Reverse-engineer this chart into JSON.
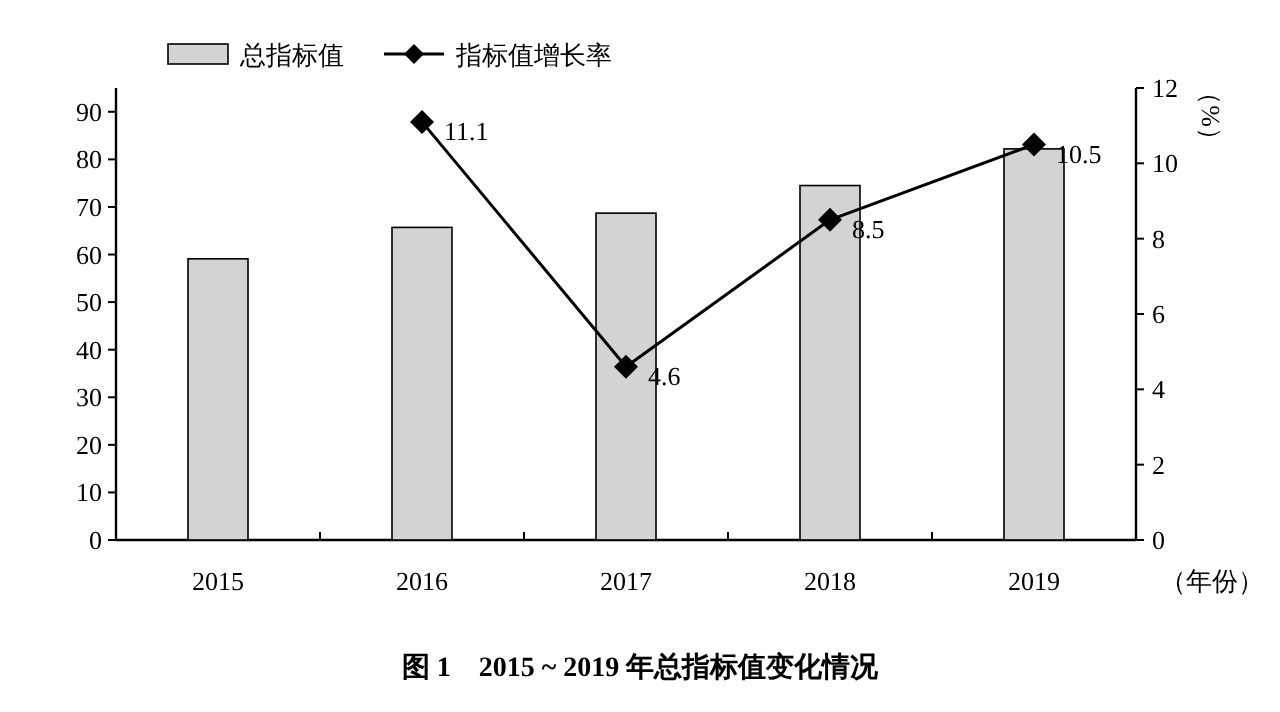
{
  "chart_data": {
    "type": "bar",
    "title": "图 1　2015 ~ 2019 年总指标值变化情况",
    "xlabel": "（年份）",
    "y2label": "（%）",
    "categories": [
      "2015",
      "2016",
      "2017",
      "2018",
      "2019"
    ],
    "series": [
      {
        "name": "总指标值",
        "color": "#d3d3d3",
        "values": [
          59.1,
          65.7,
          68.7,
          74.5,
          82.2
        ]
      },
      {
        "name": "指标值增长率",
        "type": "line",
        "axis": "y2",
        "color": "#000000",
        "marker": "diamond",
        "values": [
          null,
          11.1,
          4.6,
          8.5,
          10.5
        ],
        "value_labels": [
          null,
          "11.1",
          "4.6",
          "8.5",
          "10.5"
        ]
      }
    ],
    "ylim": [
      0,
      95
    ],
    "yticks": [
      0,
      10,
      20,
      30,
      40,
      50,
      60,
      70,
      80,
      90
    ],
    "y2lim": [
      0,
      12
    ],
    "y2ticks": [
      0,
      2,
      4,
      6,
      8,
      10,
      12
    ],
    "legend": "top"
  }
}
